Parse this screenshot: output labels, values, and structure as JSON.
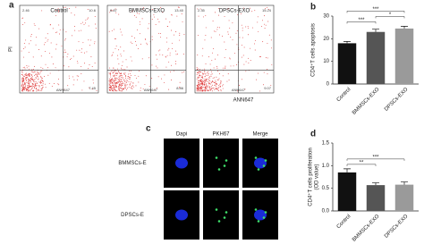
{
  "flow": {
    "panel_label": "a",
    "y_label": "PI",
    "x_label": "ANN647",
    "plots": [
      {
        "title": "Control",
        "quadrants": {
          "upper_left": "2.46",
          "upper_right": "10.6",
          "lower_right": "7.45"
        }
      },
      {
        "title": "BMMSCs-EXO",
        "quadrants": {
          "upper_left": "6.87",
          "upper_right": "13.40",
          "lower_right": "8.86"
        }
      },
      {
        "title": "DPSCs-EXO",
        "quadrants": {
          "upper_left": "2.35",
          "upper_right": "15.24",
          "lower_right": "9.07"
        }
      }
    ]
  },
  "imaging": {
    "panel_label": "c",
    "columns": [
      "Dapi",
      "PKH67",
      "Merge"
    ],
    "rows": [
      "BMMSCs-E",
      "DPSCs-E"
    ]
  },
  "chart_data": [
    {
      "type": "bar",
      "panel_label": "b",
      "y_label": [
        "CD4⁺T cells apoptosis"
      ],
      "categories": [
        "Control",
        "BMMSCs-EXO",
        "DPSCs-EXO"
      ],
      "values": [
        18,
        23,
        24.5
      ],
      "errors": [
        0.8,
        1.2,
        1.0
      ],
      "colors": [
        "#111111",
        "#555555",
        "#9a9a9a"
      ],
      "ylim": [
        0,
        30
      ],
      "yticks": [
        0,
        10,
        20,
        30
      ],
      "significance": [
        {
          "from": 0,
          "to": 1,
          "label": "***"
        },
        {
          "from": 1,
          "to": 2,
          "label": "*"
        },
        {
          "from": 0,
          "to": 2,
          "label": "***"
        }
      ]
    },
    {
      "type": "bar",
      "panel_label": "d",
      "y_label": [
        "CD4⁺T cells proliferation",
        "(OD value)"
      ],
      "categories": [
        "Control",
        "BMMSCs-EXO",
        "DPSCs-EXO"
      ],
      "values": [
        0.85,
        0.57,
        0.58
      ],
      "errors": [
        0.08,
        0.05,
        0.06
      ],
      "colors": [
        "#111111",
        "#555555",
        "#9a9a9a"
      ],
      "ylim": [
        0,
        1.5
      ],
      "yticks": [
        {
          "value": 0,
          "label": "0.0"
        },
        {
          "value": 0.5,
          "label": "0.5"
        },
        {
          "value": 1,
          "label": "1.0"
        },
        {
          "value": 1.5,
          "label": "1.5"
        }
      ],
      "significance": [
        {
          "from": 0,
          "to": 1,
          "label": "**"
        },
        {
          "from": 0,
          "to": 2,
          "label": "***"
        }
      ]
    }
  ]
}
